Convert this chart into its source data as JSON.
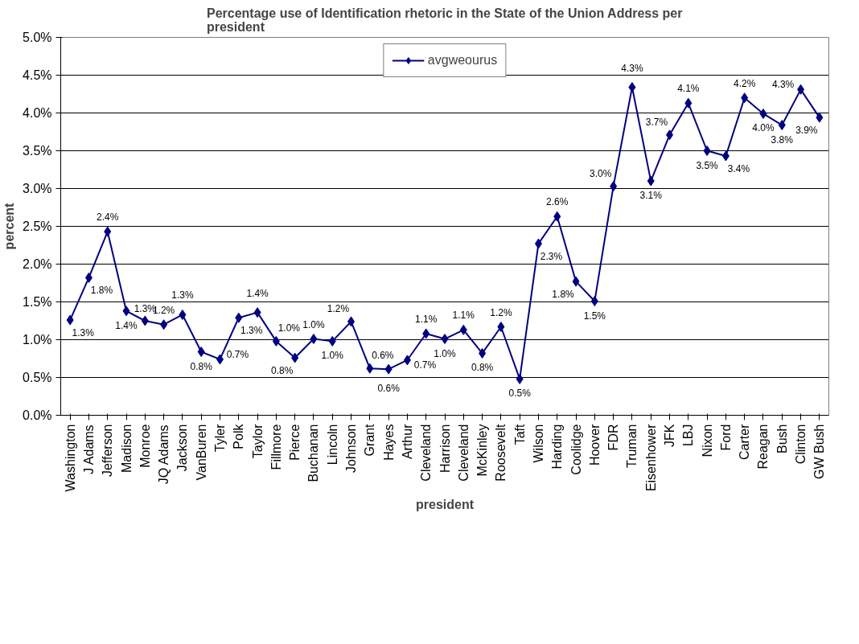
{
  "chart_data": {
    "type": "line",
    "title": "Percentage use of Identification rhetoric in the State of the Union Address per president",
    "xlabel": "president",
    "ylabel": "percent",
    "categories": [
      "Washington",
      "J Adams",
      "Jefferson",
      "Madison",
      "Monroe",
      "JQ Adams",
      "Jackson",
      "VanBuren",
      "Tyler",
      "Polk",
      "Taylor",
      "Fillmore",
      "Pierce",
      "Buchanan",
      "Lincoln",
      "Johnson",
      "Grant",
      "Hayes",
      "Arthur",
      "Cleveland",
      "Harrison",
      "Cleveland",
      "McKinley",
      "Roosevelt",
      "Taft",
      "Wilson",
      "Harding",
      "Coolidge",
      "Hoover",
      "FDR",
      "Truman",
      "Eisenhower",
      "JFK",
      "LBJ",
      "Nixon",
      "Ford",
      "Carter",
      "Reagan",
      "Bush",
      "Clinton",
      "GW Bush"
    ],
    "series": [
      {
        "name": "avgweourus",
        "color": "#000080",
        "values": [
          1.26,
          1.82,
          2.43,
          1.38,
          1.25,
          1.2,
          1.33,
          0.84,
          0.74,
          1.29,
          1.36,
          0.98,
          0.76,
          1.01,
          0.98,
          1.24,
          0.62,
          0.61,
          0.73,
          1.08,
          1.01,
          1.13,
          0.82,
          1.17,
          0.48,
          2.27,
          2.63,
          1.77,
          1.51,
          3.03,
          4.34,
          3.1,
          3.71,
          4.13,
          3.5,
          3.43,
          4.2,
          3.99,
          3.84,
          4.31,
          3.94
        ],
        "value_labels": [
          "1.3%",
          "1.8%",
          "2.4%",
          "1.4%",
          "1.3%",
          "1.2%",
          "1.3%",
          "0.8%",
          "0.7%",
          "1.3%",
          "1.4%",
          "1.0%",
          "0.8%",
          "1.0%",
          "1.0%",
          "1.2%",
          "0.6%",
          "0.6%",
          "0.7%",
          "1.1%",
          "1.0%",
          "1.1%",
          "0.8%",
          "1.2%",
          "0.5%",
          "2.3%",
          "2.6%",
          "1.8%",
          "1.5%",
          "3.0%",
          "4.3%",
          "3.1%",
          "3.7%",
          "4.1%",
          "3.5%",
          "3.4%",
          "4.2%",
          "4.0%",
          "3.8%",
          "4.3%",
          "3.9%"
        ]
      }
    ],
    "ylim": [
      0,
      5
    ],
    "yticks": [
      {
        "value": 0,
        "label": "0.0%"
      },
      {
        "value": 0.5,
        "label": "0.5%"
      },
      {
        "value": 1,
        "label": "1.0%"
      },
      {
        "value": 1.5,
        "label": "1.5%"
      },
      {
        "value": 2,
        "label": "2.0%"
      },
      {
        "value": 2.5,
        "label": "2.5%"
      },
      {
        "value": 3,
        "label": "3.0%"
      },
      {
        "value": 3.5,
        "label": "3.5%"
      },
      {
        "value": 4,
        "label": "4.0%"
      },
      {
        "value": 4.5,
        "label": "4.5%"
      },
      {
        "value": 5,
        "label": "5.0%"
      }
    ],
    "grid": "y",
    "legend": "top",
    "marker": "diamond",
    "line_style": "solid"
  }
}
